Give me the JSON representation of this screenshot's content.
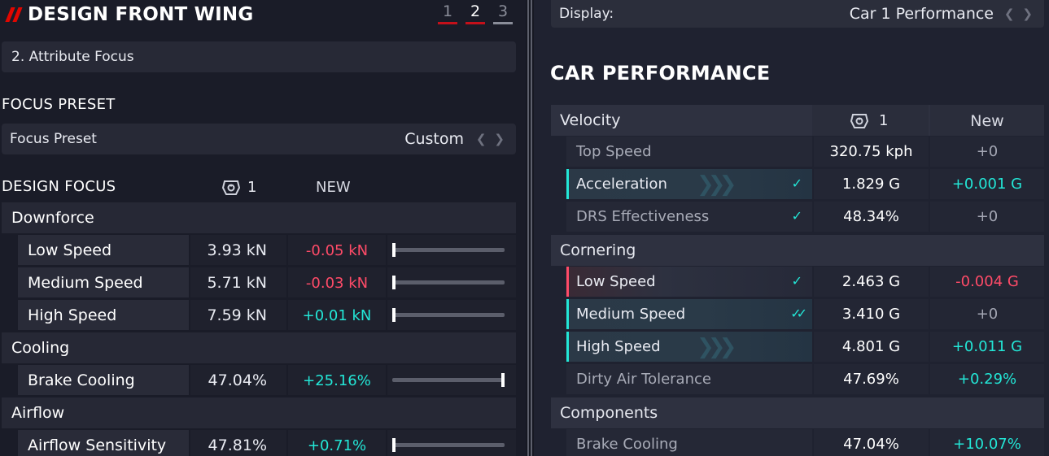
{
  "header": {
    "title": "DESIGN FRONT WING",
    "steps": [
      "1",
      "2",
      "3"
    ],
    "active_step": "2"
  },
  "attribute_box": {
    "label": "2. Attribute Focus"
  },
  "focus_preset": {
    "section_title": "FOCUS PRESET",
    "label": "Focus Preset",
    "value": "Custom"
  },
  "design_focus": {
    "section_title": "DESIGN FOCUS",
    "col_current_icon": "car-icon",
    "col_current": "1",
    "col_new": "NEW",
    "groups": [
      {
        "name": "Downforce",
        "rows": [
          {
            "name": "Low Speed",
            "current": "3.93 kN",
            "delta": "-0.05 kN",
            "delta_type": "neg",
            "slider_level": 0.0
          },
          {
            "name": "Medium Speed",
            "current": "5.71 kN",
            "delta": "-0.03 kN",
            "delta_type": "neg",
            "slider_level": 0.0
          },
          {
            "name": "High Speed",
            "current": "7.59 kN",
            "delta": "+0.01 kN",
            "delta_type": "pos",
            "slider_level": 0.0
          }
        ]
      },
      {
        "name": "Cooling",
        "rows": [
          {
            "name": "Brake Cooling",
            "current": "47.04%",
            "delta": "+25.16%",
            "delta_type": "pos",
            "slider_level": 1.0
          }
        ]
      },
      {
        "name": "Airflow",
        "rows": [
          {
            "name": "Airflow Sensitivity",
            "current": "47.81%",
            "delta": "+0.71%",
            "delta_type": "pos",
            "slider_level": 0.0
          }
        ]
      }
    ]
  },
  "display": {
    "label": "Display:",
    "value": "Car 1 Performance"
  },
  "car_performance": {
    "title": "CAR PERFORMANCE",
    "col_current": "1",
    "col_new": "New",
    "groups": [
      {
        "name": "Velocity",
        "rows": [
          {
            "name": "Top Speed",
            "current": "320.75 kph",
            "delta": "+0",
            "delta_type": "neu",
            "highlight": "none",
            "check": ""
          },
          {
            "name": "Acceleration",
            "current": "1.829 G",
            "delta": "+0.001 G",
            "delta_type": "pos",
            "highlight": "pos",
            "check": "✓"
          },
          {
            "name": "DRS Effectiveness",
            "current": "48.34%",
            "delta": "+0",
            "delta_type": "neu",
            "highlight": "none",
            "check": "✓"
          }
        ]
      },
      {
        "name": "Cornering",
        "rows": [
          {
            "name": "Low Speed",
            "current": "2.463 G",
            "delta": "-0.004 G",
            "delta_type": "neg",
            "highlight": "neg",
            "check": "✓"
          },
          {
            "name": "Medium Speed",
            "current": "3.410 G",
            "delta": "+0",
            "delta_type": "neu",
            "highlight": "pos",
            "check": "✓✓"
          },
          {
            "name": "High Speed",
            "current": "4.801 G",
            "delta": "+0.011 G",
            "delta_type": "pos",
            "highlight": "pos",
            "check": ""
          },
          {
            "name": "Dirty Air Tolerance",
            "current": "47.69%",
            "delta": "+0.29%",
            "delta_type": "pos",
            "highlight": "none",
            "check": ""
          }
        ]
      },
      {
        "name": "Components",
        "rows": [
          {
            "name": "Brake Cooling",
            "current": "47.04%",
            "delta": "+10.07%",
            "delta_type": "pos",
            "highlight": "none",
            "check": ""
          }
        ]
      }
    ]
  },
  "colors": {
    "accent_red": "#e10600",
    "positive": "#23e7d7",
    "negative": "#ff4b68",
    "neutral": "#a4a7b4"
  }
}
